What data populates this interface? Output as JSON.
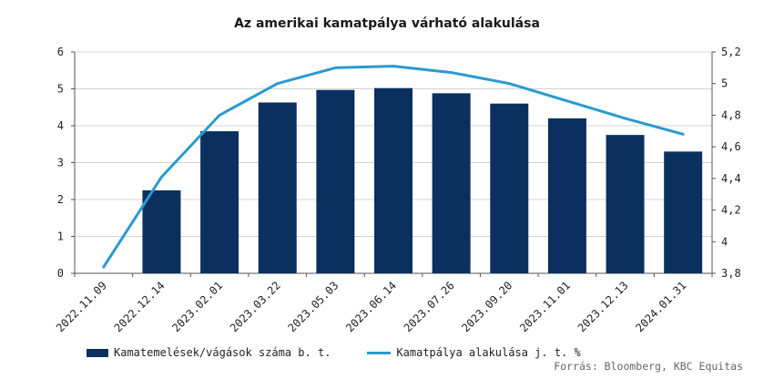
{
  "chart_data": {
    "type": "bar",
    "title": "Az amerikai kamatpálya várható alakulása",
    "categories": [
      "2022.11.09",
      "2022.12.14",
      "2023.02.01",
      "2023.03.22",
      "2023.05.03",
      "2023.06.14",
      "2023.07.26",
      "2023.09.20",
      "2023.11.01",
      "2023.12.13",
      "2024.01.31"
    ],
    "series": [
      {
        "name": "Kamatemelések/vágások száma b. t.",
        "type": "bar",
        "axis": "left",
        "color": "#0b3060",
        "values": [
          null,
          2.25,
          3.85,
          4.63,
          4.97,
          5.02,
          4.88,
          4.6,
          4.2,
          3.75,
          3.3
        ]
      },
      {
        "name": "Kamatpálya alakulása j. t. %",
        "type": "line",
        "axis": "right",
        "color": "#2b9ad0",
        "values": [
          3.84,
          4.41,
          4.8,
          5.0,
          5.1,
          5.11,
          5.07,
          5.0,
          4.89,
          4.78,
          4.68
        ]
      }
    ],
    "y_left": {
      "ylim": [
        0,
        6
      ],
      "ticks": [
        "0",
        "1",
        "2",
        "3",
        "4",
        "5",
        "6"
      ]
    },
    "y_right": {
      "ylim": [
        3.8,
        5.2
      ],
      "ticks": [
        "3,8",
        "4",
        "4,2",
        "4,4",
        "4,6",
        "4,8",
        "5",
        "5,2"
      ]
    },
    "grid": true,
    "legend_position": "bottom-left"
  },
  "source": "Forrás: Bloomberg, KBC Equitas"
}
